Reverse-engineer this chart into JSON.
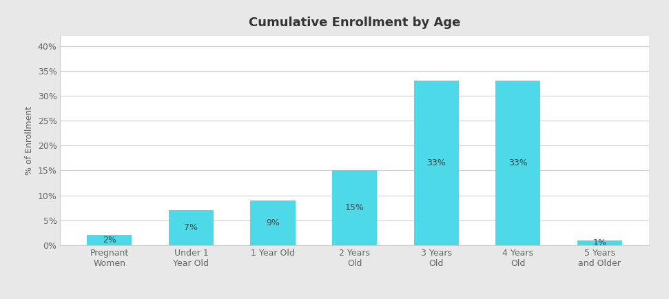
{
  "title": "Cumulative Enrollment by Age",
  "categories": [
    "Pregnant\nWomen",
    "Under 1\nYear Old",
    "1 Year Old",
    "2 Years\nOld",
    "3 Years\nOld",
    "4 Years\nOld",
    "5 Years\nand Older"
  ],
  "values": [
    2,
    7,
    9,
    15,
    33,
    33,
    1
  ],
  "labels": [
    "2%",
    "7%",
    "9%",
    "15%",
    "33%",
    "33%",
    "1%"
  ],
  "bar_color": "#4DD9E8",
  "ylabel": "% of Enrollment",
  "ylim": [
    0,
    42
  ],
  "yticks": [
    0,
    5,
    10,
    15,
    20,
    25,
    30,
    35,
    40
  ],
  "ytick_labels": [
    "0%",
    "5%",
    "10%",
    "15%",
    "20%",
    "25%",
    "30%",
    "35%",
    "40%"
  ],
  "outer_bg_color": "#e8e8e8",
  "inner_bg_color": "#ffffff",
  "grid_color": "#d0d0d0",
  "title_fontsize": 13,
  "label_fontsize": 9,
  "tick_fontsize": 9,
  "ylabel_fontsize": 9,
  "label_text_color": "#444444",
  "tick_color": "#666666",
  "border_color": "#cccccc"
}
